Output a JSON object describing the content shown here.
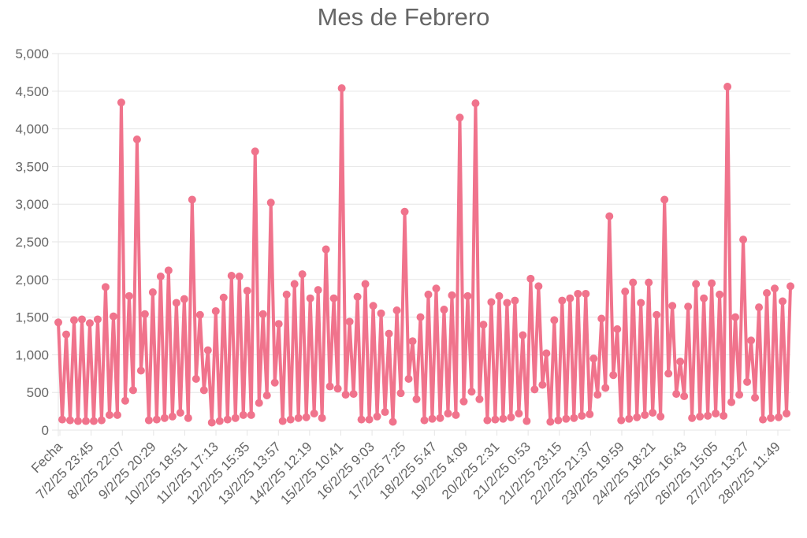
{
  "chart_data": {
    "type": "line",
    "title": "Mes de Febrero",
    "xlabel": "",
    "ylabel": "",
    "ylim": [
      0,
      5000
    ],
    "yticks": [
      "0",
      "500",
      "1,000",
      "1,500",
      "2,000",
      "2,500",
      "3,000",
      "3,500",
      "4,000",
      "4,500",
      "5,000"
    ],
    "x_tick_labels": [
      "Fecha",
      "7/2/25 23:45",
      "8/2/25 22:07",
      "9/2/25 20:29",
      "10/2/25 18:51",
      "11/2/25 17:13",
      "12/2/25 15:35",
      "13/2/25 13:57",
      "14/2/25 12:19",
      "15/2/25 10:41",
      "16/2/25 9:03",
      "17/2/25 7:25",
      "18/2/25 5:47",
      "19/2/25 4:09",
      "20/2/25 2:31",
      "21/2/25 0:53",
      "21/2/25 23:15",
      "22/2/25 21:37",
      "23/2/25 19:59",
      "24/2/25 18:21",
      "25/2/25 16:43",
      "26/2/25 15:05",
      "27/2/25 13:27",
      "28/2/25 11:49"
    ],
    "grid": true,
    "legend": "none",
    "series": [
      {
        "color": "#f0738c",
        "values": [
          1430,
          140,
          1270,
          130,
          1460,
          120,
          1470,
          120,
          1420,
          120,
          1470,
          130,
          1900,
          200,
          1510,
          200,
          4350,
          390,
          1780,
          530,
          3860,
          790,
          1540,
          130,
          1830,
          140,
          2040,
          160,
          2120,
          180,
          1690,
          230,
          1740,
          160,
          3060,
          680,
          1530,
          530,
          1060,
          100,
          1580,
          120,
          1760,
          140,
          2050,
          160,
          2040,
          200,
          1850,
          200,
          3700,
          360,
          1540,
          460,
          3020,
          630,
          1410,
          120,
          1800,
          140,
          1940,
          160,
          2070,
          170,
          1750,
          220,
          1860,
          160,
          2400,
          580,
          1750,
          550,
          4540,
          470,
          1440,
          480,
          1770,
          140,
          1940,
          140,
          1650,
          180,
          1550,
          240,
          1280,
          110,
          1590,
          490,
          2900,
          680,
          1180,
          410,
          1500,
          130,
          1800,
          150,
          1880,
          160,
          1600,
          220,
          1790,
          200,
          4150,
          380,
          1780,
          510,
          4340,
          410,
          1400,
          130,
          1700,
          140,
          1780,
          150,
          1690,
          170,
          1720,
          220,
          1260,
          120,
          2010,
          540,
          1910,
          600,
          1020,
          110,
          1460,
          130,
          1720,
          150,
          1750,
          160,
          1810,
          190,
          1810,
          210,
          950,
          470,
          1480,
          560,
          2840,
          730,
          1340,
          130,
          1840,
          150,
          1960,
          170,
          1690,
          200,
          1960,
          230,
          1530,
          180,
          3060,
          750,
          1650,
          480,
          910,
          450,
          1640,
          160,
          1940,
          180,
          1750,
          190,
          1950,
          220,
          1800,
          190,
          4560,
          370,
          1500,
          470,
          2530,
          640,
          1190,
          430,
          1630,
          140,
          1820,
          160,
          1880,
          170,
          1710,
          220,
          1910
        ]
      }
    ]
  }
}
